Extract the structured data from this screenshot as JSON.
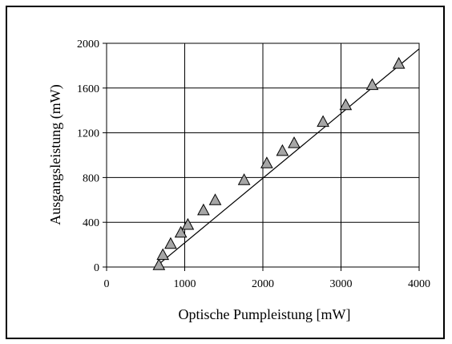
{
  "chart_data": {
    "type": "scatter",
    "xlabel": "Optische Pumpleistung [mW]",
    "ylabel": "Ausgangsleistung (mW)",
    "xlim": [
      0,
      4000
    ],
    "ylim": [
      0,
      2000
    ],
    "x_ticks": [
      0,
      1000,
      2000,
      3000,
      4000
    ],
    "y_ticks": [
      0,
      400,
      800,
      1200,
      1600,
      2000
    ],
    "x_tick_labels": [
      "0",
      "1000",
      "2000",
      "3000",
      "4000"
    ],
    "y_tick_labels": [
      "0",
      "400",
      "800",
      "1200",
      "1600",
      "2000"
    ],
    "grid": true,
    "marker": "triangle",
    "marker_color": "#a6a6a6",
    "series": [
      {
        "x": [
          670,
          720,
          820,
          950,
          1040,
          1240,
          1390,
          1760,
          2050,
          2250,
          2400,
          2770,
          3060,
          3400,
          3740
        ],
        "y": [
          20,
          110,
          210,
          310,
          380,
          510,
          600,
          780,
          930,
          1040,
          1110,
          1300,
          1450,
          1630,
          1820
        ]
      }
    ],
    "fit_line": {
      "x": [
        660,
        4000
      ],
      "y": [
        20,
        1950
      ]
    }
  }
}
